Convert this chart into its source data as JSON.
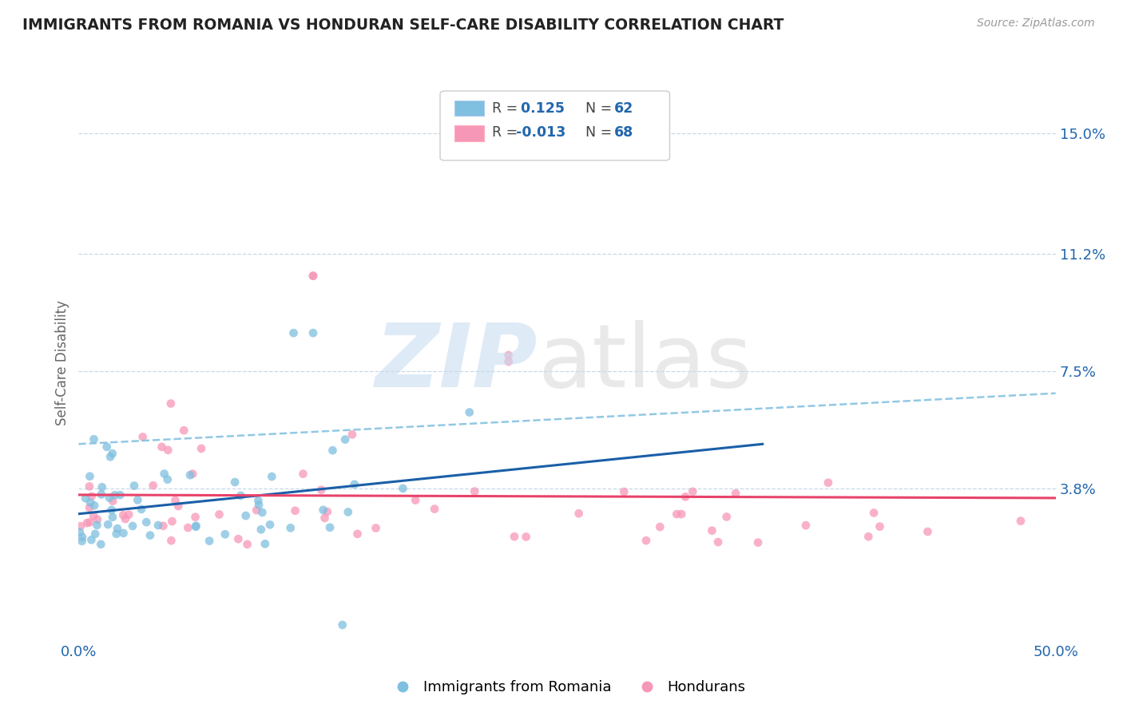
{
  "title": "IMMIGRANTS FROM ROMANIA VS HONDURAN SELF-CARE DISABILITY CORRELATION CHART",
  "source": "Source: ZipAtlas.com",
  "xlim": [
    0.0,
    0.5
  ],
  "ylim": [
    -0.01,
    0.165
  ],
  "ylabel": "Self-Care Disability",
  "ylabel_ticks": [
    0.0,
    0.038,
    0.075,
    0.112,
    0.15
  ],
  "ylabel_labels": [
    "",
    "3.8%",
    "7.5%",
    "11.2%",
    "15.0%"
  ],
  "romania_color": "#7fbfdf",
  "honduras_color": "#f797b8",
  "romania_trend_color": "#1a5fa8",
  "honduras_trend_color": "#e8436a",
  "dashed_line_color": "#7fbfdf",
  "romania_trend": [
    0.0,
    0.03,
    0.35,
    0.052
  ],
  "honduras_trend": [
    0.0,
    0.036,
    0.5,
    0.035
  ],
  "dashed_trend": [
    0.0,
    0.052,
    0.5,
    0.068
  ],
  "romania_R": "0.125",
  "romania_N": "62",
  "honduras_R": "-0.013",
  "honduras_N": "68",
  "grid_color": "#c8d8e8",
  "watermark_zip_color": "#c8ddf0",
  "watermark_atlas_color": "#d8d8d8"
}
